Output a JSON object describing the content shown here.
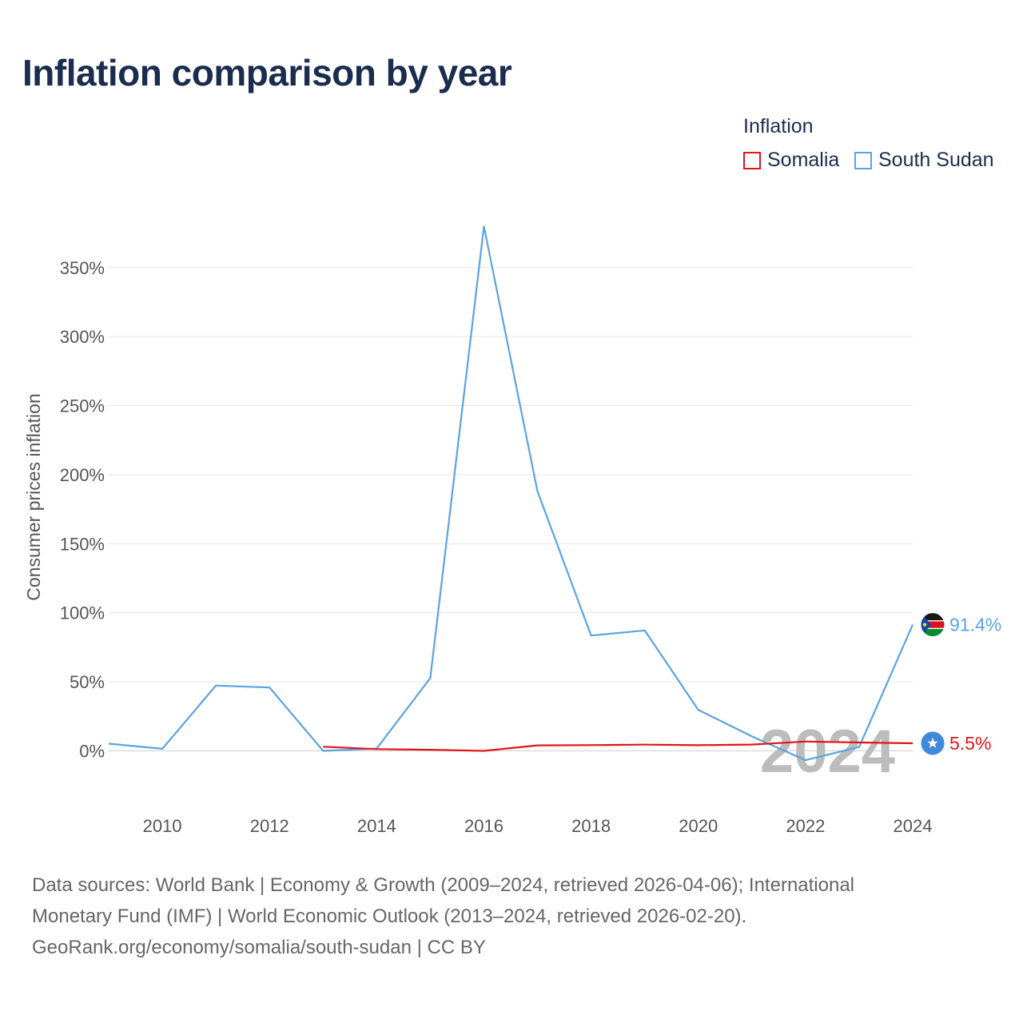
{
  "header": {
    "title": "Inflation comparison by year"
  },
  "legend": {
    "title": "Inflation",
    "items": [
      {
        "label": "Somalia",
        "color": "#e0151a"
      },
      {
        "label": "South Sudan",
        "color": "#5aa3e3"
      }
    ]
  },
  "chart_data": {
    "type": "line",
    "title": "Inflation comparison by year",
    "xlabel": "",
    "ylabel": "Consumer prices inflation",
    "xlim": [
      2009,
      2024
    ],
    "ylim": [
      -35,
      395
    ],
    "y_ticks": [
      0,
      50,
      100,
      150,
      200,
      250,
      300,
      350
    ],
    "y_tick_labels": [
      "0%",
      "50%",
      "100%",
      "150%",
      "200%",
      "250%",
      "300%",
      "350%"
    ],
    "x_ticks": [
      2010,
      2012,
      2014,
      2016,
      2018,
      2020,
      2022,
      2024
    ],
    "x_tick_labels": [
      "2010",
      "2012",
      "2014",
      "2016",
      "2018",
      "2020",
      "2022",
      "2024"
    ],
    "grid": "horizontal",
    "series": [
      {
        "name": "South Sudan",
        "color": "#5aa3e3",
        "x": [
          2009,
          2010,
          2011,
          2012,
          2013,
          2014,
          2015,
          2016,
          2017,
          2018,
          2019,
          2020,
          2021,
          2022,
          2023,
          2024
        ],
        "values": [
          5.2,
          1.5,
          47.3,
          45.9,
          0.0,
          1.7,
          52.8,
          379.8,
          187.9,
          83.5,
          87.2,
          29.7,
          10.5,
          -6.7,
          2.8,
          91.4
        ],
        "end_label": "91.4%"
      },
      {
        "name": "Somalia",
        "color": "#e0151a",
        "x": [
          2013,
          2014,
          2015,
          2016,
          2017,
          2018,
          2019,
          2020,
          2021,
          2022,
          2023,
          2024
        ],
        "values": [
          3.0,
          1.3,
          0.8,
          0.0,
          4.0,
          4.2,
          4.5,
          4.1,
          4.6,
          6.8,
          6.1,
          5.5
        ],
        "end_label": "5.5%"
      }
    ],
    "watermark": "2024"
  },
  "footer": {
    "source_line1": "Data sources: World Bank | Economy & Growth (2009–2024, retrieved 2026-04-06); International",
    "source_line2": "Monetary Fund (IMF) | World Economic Outlook (2013–2024, retrieved 2026-02-20).",
    "source_line3": "GeoRank.org/economy/somalia/south-sudan | CC BY"
  }
}
